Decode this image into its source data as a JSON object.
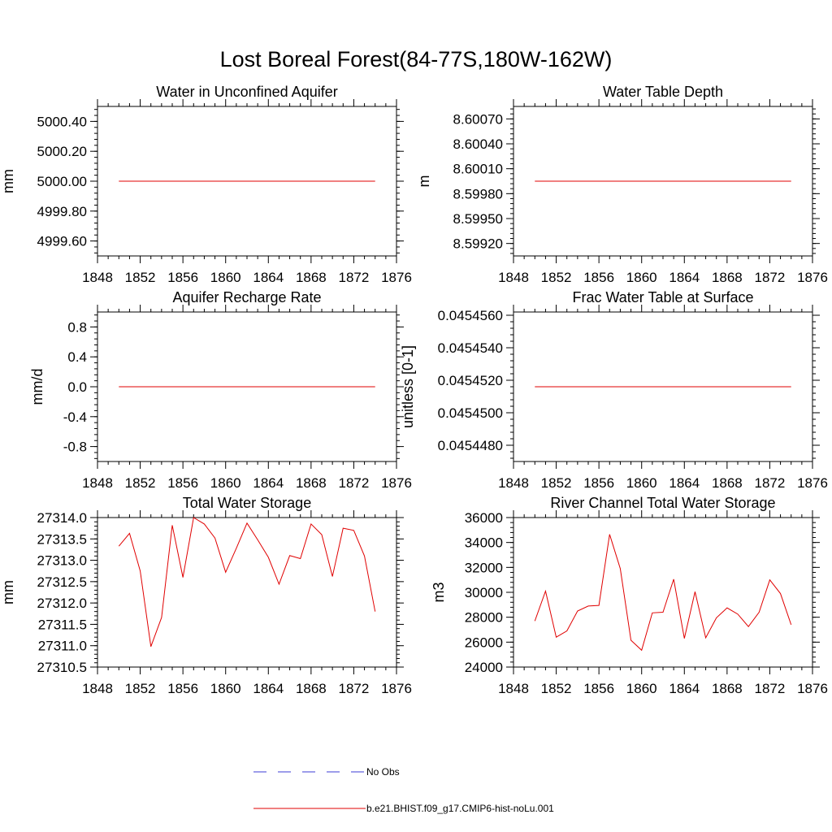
{
  "title": "Lost Boreal Forest(84-77S,180W-162W)",
  "legend": [
    {
      "label": "No Obs",
      "color": "#3b3bd6",
      "style": "dashed"
    },
    {
      "label": "b.e21.BHIST.f09_g17.CMIP6-hist-noLu.001",
      "color": "#e00000",
      "style": "solid"
    }
  ],
  "chart_data": [
    {
      "type": "line",
      "title": "Water in Unconfined Aquifer",
      "ylabel": "mm",
      "xlim": [
        1848,
        1876
      ],
      "xticks": [
        1848,
        1852,
        1856,
        1860,
        1864,
        1868,
        1872,
        1876
      ],
      "ylim": [
        4999.5,
        5000.5
      ],
      "yticks": [
        4999.6,
        4999.8,
        5000.0,
        5000.2,
        5000.4
      ],
      "ytick_labels": [
        "4999.60",
        "4999.80",
        "5000.00",
        "5000.20",
        "5000.40"
      ],
      "series": [
        {
          "color": "#e00000",
          "x": [
            1850,
            1874
          ],
          "y": [
            5000.0,
            5000.0
          ]
        }
      ]
    },
    {
      "type": "line",
      "title": "Water Table Depth",
      "ylabel": "m",
      "xlim": [
        1848,
        1876
      ],
      "xticks": [
        1848,
        1852,
        1856,
        1860,
        1864,
        1868,
        1872,
        1876
      ],
      "ylim": [
        8.59905,
        8.60085
      ],
      "yticks": [
        8.5992,
        8.5995,
        8.5998,
        8.6001,
        8.6004,
        8.6007
      ],
      "ytick_labels": [
        "8.59920",
        "8.59950",
        "8.59980",
        "8.60010",
        "8.60040",
        "8.60070"
      ],
      "series": [
        {
          "color": "#e00000",
          "x": [
            1850,
            1874
          ],
          "y": [
            8.59995,
            8.59995
          ]
        }
      ]
    },
    {
      "type": "line",
      "title": "Aquifer Recharge Rate",
      "ylabel": "mm/d",
      "xlim": [
        1848,
        1876
      ],
      "xticks": [
        1848,
        1852,
        1856,
        1860,
        1864,
        1868,
        1872,
        1876
      ],
      "ylim": [
        -1.0,
        1.0
      ],
      "yticks": [
        -0.8,
        -0.4,
        0.0,
        0.4,
        0.8
      ],
      "ytick_labels": [
        "-0.8",
        "-0.4",
        "0.0",
        "0.4",
        "0.8"
      ],
      "series": [
        {
          "color": "#e00000",
          "x": [
            1850,
            1874
          ],
          "y": [
            0.0,
            0.0
          ]
        }
      ]
    },
    {
      "type": "line",
      "title": "Frac Water Table at Surface",
      "ylabel": "unitless [0-1]",
      "xlim": [
        1848,
        1876
      ],
      "xticks": [
        1848,
        1852,
        1856,
        1860,
        1864,
        1868,
        1872,
        1876
      ],
      "ylim": [
        0.045447,
        0.0454562
      ],
      "yticks": [
        0.045448,
        0.04545,
        0.045452,
        0.045454,
        0.045456
      ],
      "ytick_labels": [
        "0.0454480",
        "0.0454500",
        "0.0454520",
        "0.0454540",
        "0.0454560"
      ],
      "series": [
        {
          "color": "#e00000",
          "x": [
            1850,
            1874
          ],
          "y": [
            0.0454516,
            0.0454516
          ]
        }
      ]
    },
    {
      "type": "line",
      "title": "Total Water Storage",
      "ylabel": "mm",
      "xlim": [
        1848,
        1876
      ],
      "xticks": [
        1848,
        1852,
        1856,
        1860,
        1864,
        1868,
        1872,
        1876
      ],
      "ylim": [
        27310.5,
        27314.0
      ],
      "yticks": [
        27310.5,
        27311.0,
        27311.5,
        27312.0,
        27312.5,
        27313.0,
        27313.5,
        27314.0
      ],
      "ytick_labels": [
        "27310.5",
        "27311.0",
        "27311.5",
        "27312.0",
        "27312.5",
        "27313.0",
        "27313.5",
        "27314.0"
      ],
      "series": [
        {
          "color": "#e00000",
          "x": [
            1850,
            1851,
            1852,
            1853,
            1854,
            1855,
            1856,
            1857,
            1858,
            1859,
            1860,
            1861,
            1862,
            1863,
            1864,
            1865,
            1866,
            1867,
            1868,
            1869,
            1870,
            1871,
            1872,
            1873,
            1874
          ],
          "y": [
            27313.33,
            27313.63,
            27312.75,
            27310.98,
            27311.66,
            27313.82,
            27312.6,
            27314.0,
            27313.85,
            27313.52,
            27312.72,
            27313.28,
            27313.87,
            27313.48,
            27313.07,
            27312.44,
            27313.11,
            27313.04,
            27313.85,
            27313.6,
            27312.62,
            27313.75,
            27313.7,
            27313.1,
            27311.8
          ]
        }
      ]
    },
    {
      "type": "line",
      "title": "River Channel Total Water Storage",
      "ylabel": "m3",
      "xlim": [
        1848,
        1876
      ],
      "xticks": [
        1848,
        1852,
        1856,
        1860,
        1864,
        1868,
        1872,
        1876
      ],
      "ylim": [
        24000,
        36000
      ],
      "yticks": [
        24000,
        26000,
        28000,
        30000,
        32000,
        34000,
        36000
      ],
      "ytick_labels": [
        "24000",
        "26000",
        "28000",
        "30000",
        "32000",
        "34000",
        "36000"
      ],
      "series": [
        {
          "color": "#e00000",
          "x": [
            1850,
            1851,
            1852,
            1853,
            1854,
            1855,
            1856,
            1857,
            1858,
            1859,
            1860,
            1861,
            1862,
            1863,
            1864,
            1865,
            1866,
            1867,
            1868,
            1869,
            1870,
            1871,
            1872,
            1873,
            1874
          ],
          "y": [
            27700,
            30100,
            26400,
            26900,
            28500,
            28900,
            28950,
            34650,
            31900,
            26150,
            25350,
            28350,
            28400,
            31050,
            26300,
            30050,
            26350,
            27950,
            28750,
            28250,
            27250,
            28400,
            31000,
            29900,
            27400
          ]
        }
      ]
    }
  ]
}
